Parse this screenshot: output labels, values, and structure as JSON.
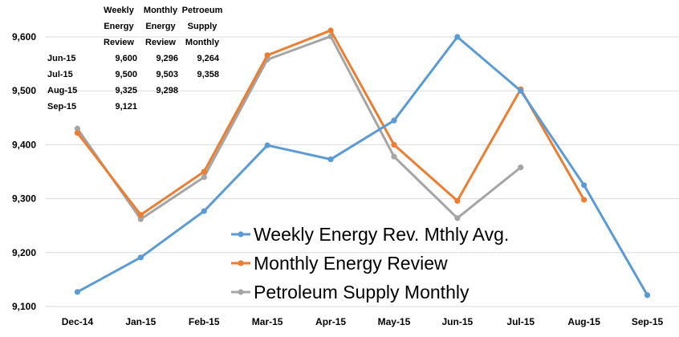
{
  "chart_data": {
    "type": "line",
    "categories": [
      "Dec-14",
      "Jan-15",
      "Feb-15",
      "Mar-15",
      "Apr-15",
      "May-15",
      "Jun-15",
      "Jul-15",
      "Aug-15",
      "Sep-15"
    ],
    "ylim": [
      9100,
      9600
    ],
    "yticks": [
      "9,100",
      "9,200",
      "9,300",
      "9,400",
      "9,500",
      "9,600"
    ],
    "ytick_values": [
      9100,
      9200,
      9300,
      9400,
      9500,
      9600
    ],
    "grid": "horizontal",
    "legend_position": "bottom-center-right",
    "series": [
      {
        "name": "Weekly Energy Rev. Mthly Avg.",
        "color": "#5B9BD5",
        "values": [
          9127,
          9191,
          9277,
          9399,
          9373,
          9445,
          9600,
          9500,
          9325,
          9121
        ]
      },
      {
        "name": "Monthly Energy Review",
        "color": "#ED7D31",
        "values": [
          9422,
          9270,
          9350,
          9566,
          9612,
          9400,
          9296,
          9503,
          9298,
          null
        ]
      },
      {
        "name": "Petroleum Supply Monthly",
        "color": "#A5A5A5",
        "values": [
          9430,
          9262,
          9340,
          9558,
          9601,
          9378,
          9264,
          9358,
          null,
          null
        ]
      }
    ],
    "table": {
      "headers": [
        [
          "Weekly",
          "Energy",
          "Review"
        ],
        [
          "Monthly",
          "Energy",
          "Review"
        ],
        [
          "Petroeum",
          "Supply",
          "Monthly"
        ]
      ],
      "rows": [
        {
          "label": "Jun-15",
          "cells": [
            "9,600",
            "9,296",
            "9,264"
          ]
        },
        {
          "label": "Jul-15",
          "cells": [
            "9,500",
            "9,503",
            "9,358"
          ]
        },
        {
          "label": "Aug-15",
          "cells": [
            "9,325",
            "9,298",
            ""
          ]
        },
        {
          "label": "Sep-15",
          "cells": [
            "9,121",
            "",
            ""
          ]
        }
      ]
    }
  }
}
